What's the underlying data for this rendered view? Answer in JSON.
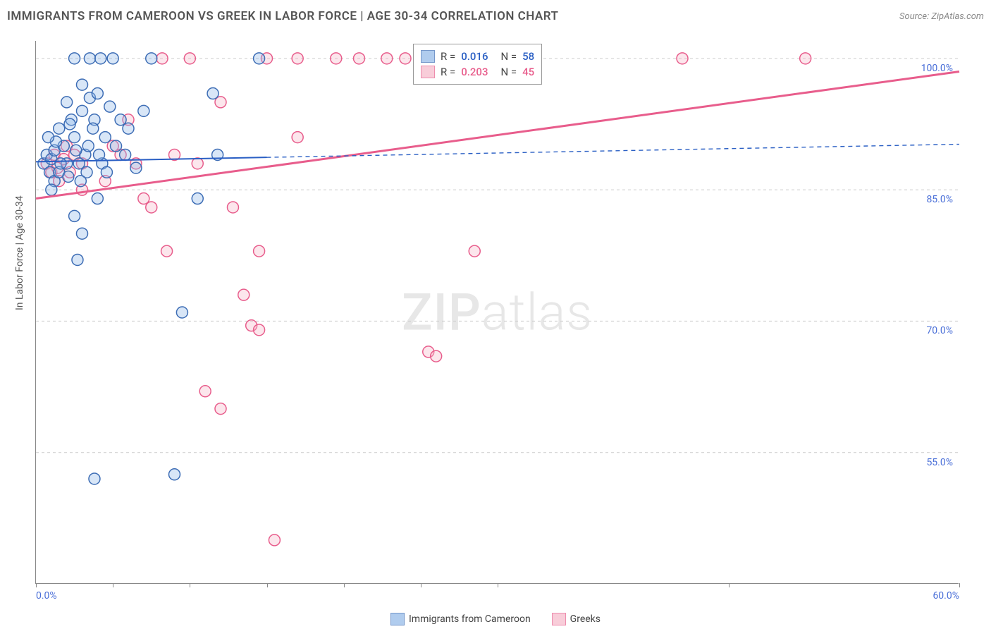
{
  "title": "IMMIGRANTS FROM CAMEROON VS GREEK IN LABOR FORCE | AGE 30-34 CORRELATION CHART",
  "source": "Source: ZipAtlas.com",
  "watermark_a": "ZIP",
  "watermark_b": "atlas",
  "yaxis_title": "In Labor Force | Age 30-34",
  "bottom_legend": {
    "series_a": "Immigrants from Cameroon",
    "series_b": "Greeks"
  },
  "r_legend": {
    "a": {
      "r_label": "R =",
      "r_value": "0.016",
      "n_label": "N =",
      "n_value": "58"
    },
    "b": {
      "r_label": "R =",
      "r_value": "0.203",
      "n_label": "N =",
      "n_value": "45"
    }
  },
  "chart": {
    "type": "scatter",
    "xlim": [
      0,
      60
    ],
    "ylim": [
      40,
      102
    ],
    "x_ticks": [
      0,
      5,
      10,
      15,
      20,
      25,
      30,
      45,
      60
    ],
    "x_tick_labels": {
      "0": "0.0%",
      "60": "60.0%"
    },
    "y_grid": [
      55,
      70,
      85,
      100
    ],
    "y_tick_labels": {
      "55": "55.0%",
      "70": "70.0%",
      "85": "85.0%",
      "100": "100.0%"
    },
    "marker_radius": 8,
    "marker_stroke_width": 1.5,
    "marker_fill_opacity": 0.35,
    "background_color": "#ffffff",
    "grid_color": "#cccccc",
    "grid_dash": "4,4",
    "axis_color": "#888888",
    "tick_label_color": "#4a6fd8",
    "series_a": {
      "name": "Immigrants from Cameroon",
      "fill": "#8fb7e8",
      "stroke": "#3d6db5",
      "trend_color": "#2a5fc4",
      "trend_start": [
        0,
        88.2
      ],
      "trend_end": [
        60,
        90.2
      ],
      "solid_until_x": 15,
      "trend_width": 2,
      "points": [
        [
          0.5,
          88
        ],
        [
          0.7,
          89
        ],
        [
          0.9,
          87
        ],
        [
          1.0,
          88.5
        ],
        [
          1.2,
          86
        ],
        [
          1.2,
          89.5
        ],
        [
          1.5,
          92
        ],
        [
          1.5,
          87
        ],
        [
          1.8,
          90
        ],
        [
          2.0,
          95
        ],
        [
          2.0,
          88
        ],
        [
          2.1,
          86.5
        ],
        [
          2.3,
          93
        ],
        [
          2.5,
          100
        ],
        [
          2.5,
          91
        ],
        [
          2.8,
          88
        ],
        [
          3.0,
          97
        ],
        [
          3.0,
          94
        ],
        [
          3.2,
          89
        ],
        [
          3.3,
          87
        ],
        [
          3.5,
          100
        ],
        [
          3.5,
          95.5
        ],
        [
          3.8,
          93
        ],
        [
          4.0,
          96
        ],
        [
          4.2,
          100
        ],
        [
          4.3,
          88
        ],
        [
          4.5,
          91
        ],
        [
          4.8,
          94.5
        ],
        [
          5.0,
          100
        ],
        [
          4.0,
          84
        ],
        [
          2.5,
          82
        ],
        [
          3.0,
          80
        ],
        [
          2.7,
          77
        ],
        [
          5.8,
          89
        ],
        [
          6.0,
          92
        ],
        [
          6.5,
          87.5
        ],
        [
          7.0,
          94
        ],
        [
          7.5,
          100
        ],
        [
          3.8,
          52
        ],
        [
          9.0,
          52.5
        ],
        [
          9.5,
          71
        ],
        [
          10.5,
          84
        ],
        [
          11.5,
          96
        ],
        [
          11.8,
          89
        ],
        [
          14.5,
          100
        ],
        [
          1.0,
          85
        ],
        [
          1.3,
          90.5
        ],
        [
          0.8,
          91
        ],
        [
          1.6,
          88
        ],
        [
          2.2,
          92.5
        ],
        [
          2.6,
          89.5
        ],
        [
          2.9,
          86
        ],
        [
          3.4,
          90
        ],
        [
          3.7,
          92
        ],
        [
          4.1,
          89
        ],
        [
          4.6,
          87
        ],
        [
          5.2,
          90
        ],
        [
          5.5,
          93
        ]
      ]
    },
    "series_b": {
      "name": "Greeks",
      "fill": "#f6b8c9",
      "stroke": "#e85d8c",
      "trend_color": "#e85d8c",
      "trend_start": [
        0,
        84
      ],
      "trend_end": [
        60,
        98.5
      ],
      "solid_until_x": 60,
      "trend_width": 3,
      "points": [
        [
          0.7,
          88
        ],
        [
          1.0,
          87
        ],
        [
          1.2,
          89
        ],
        [
          1.5,
          86
        ],
        [
          1.8,
          88.5
        ],
        [
          2.0,
          90
        ],
        [
          2.2,
          87
        ],
        [
          2.5,
          89
        ],
        [
          3.0,
          88
        ],
        [
          3.0,
          85
        ],
        [
          4.5,
          86
        ],
        [
          5.0,
          90
        ],
        [
          5.5,
          89
        ],
        [
          6.0,
          93
        ],
        [
          6.5,
          88
        ],
        [
          7.0,
          84
        ],
        [
          7.5,
          83
        ],
        [
          8.2,
          100
        ],
        [
          9.0,
          89
        ],
        [
          8.5,
          78
        ],
        [
          10.0,
          100
        ],
        [
          10.5,
          88
        ],
        [
          11.0,
          62
        ],
        [
          12.0,
          95
        ],
        [
          12.0,
          60
        ],
        [
          12.8,
          83
        ],
        [
          13.5,
          73
        ],
        [
          14.0,
          69.5
        ],
        [
          14.5,
          69
        ],
        [
          14.5,
          78
        ],
        [
          15.0,
          100
        ],
        [
          15.5,
          45
        ],
        [
          17.0,
          100
        ],
        [
          17.0,
          91
        ],
        [
          19.5,
          100
        ],
        [
          21.0,
          100
        ],
        [
          22.8,
          100
        ],
        [
          24.0,
          100
        ],
        [
          25.5,
          66.5
        ],
        [
          26.0,
          66
        ],
        [
          28.5,
          78
        ],
        [
          31.0,
          100
        ],
        [
          42.0,
          100
        ],
        [
          50.0,
          100
        ],
        [
          1.4,
          87.5
        ]
      ]
    }
  }
}
